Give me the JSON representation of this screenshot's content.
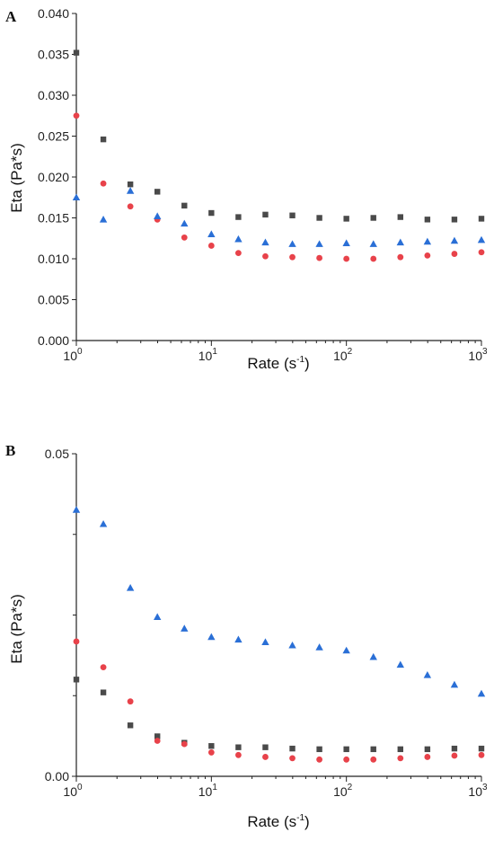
{
  "chart_data": [
    {
      "type": "scatter",
      "panel_label": "A",
      "xlabel": "Rate (s",
      "xlabel_sup": "-1",
      "xlabel_end": ")",
      "ylabel": "Eta (Pa*s)",
      "xscale": "log",
      "xlim": [
        1,
        1000
      ],
      "ylim": [
        0,
        0.04
      ],
      "yticks": [
        "0.000",
        "0.005",
        "0.010",
        "0.015",
        "0.020",
        "0.025",
        "0.030",
        "0.035",
        "0.040"
      ],
      "xticks": [
        {
          "base": "10",
          "exp": "0"
        },
        {
          "base": "10",
          "exp": "1"
        },
        {
          "base": "10",
          "exp": "2"
        },
        {
          "base": "10",
          "exp": "3"
        }
      ],
      "x": [
        1,
        1.585,
        2.512,
        3.981,
        6.31,
        10,
        15.85,
        25.12,
        39.81,
        63.1,
        100,
        158.5,
        251.2,
        398.1,
        631,
        1000
      ],
      "series": [
        {
          "marker": "square",
          "color": "#4a4a4a",
          "values": [
            0.0352,
            0.0246,
            0.0191,
            0.0182,
            0.0165,
            0.0156,
            0.0151,
            0.0154,
            0.0153,
            0.015,
            0.0149,
            0.015,
            0.0151,
            0.0148,
            0.0148,
            0.0149
          ]
        },
        {
          "marker": "circle",
          "color": "#e8424a",
          "values": [
            0.0275,
            0.0192,
            0.0164,
            0.0148,
            0.0126,
            0.0116,
            0.0107,
            0.0103,
            0.0102,
            0.0101,
            0.01,
            0.01,
            0.0102,
            0.0104,
            0.0106,
            0.0108
          ]
        },
        {
          "marker": "triangle",
          "color": "#2a6fd6",
          "values": [
            0.0175,
            0.0148,
            0.0183,
            0.0152,
            0.0143,
            0.013,
            0.0124,
            0.012,
            0.0118,
            0.0118,
            0.0119,
            0.0118,
            0.012,
            0.0121,
            0.0122,
            0.0123
          ]
        }
      ]
    },
    {
      "type": "scatter",
      "panel_label": "B",
      "xlabel": "Rate (s",
      "xlabel_sup": "-1",
      "xlabel_end": ")",
      "ylabel": "Eta (Pa*s)",
      "xscale": "log",
      "xlim": [
        1,
        1000
      ],
      "ylim": [
        0,
        0.05
      ],
      "yticks": [
        "0.00",
        "0.05"
      ],
      "minor_yticks": [
        0.0125,
        0.025,
        0.0375
      ],
      "xticks": [
        {
          "base": "10",
          "exp": "0"
        },
        {
          "base": "10",
          "exp": "1"
        },
        {
          "base": "10",
          "exp": "2"
        },
        {
          "base": "10",
          "exp": "3"
        }
      ],
      "x": [
        1,
        1.585,
        2.512,
        3.981,
        6.31,
        10,
        15.85,
        25.12,
        39.81,
        63.1,
        100,
        158.5,
        251.2,
        398.1,
        631,
        1000
      ],
      "series": [
        {
          "marker": "square",
          "color": "#4a4a4a",
          "values": [
            0.015,
            0.013,
            0.0079,
            0.0062,
            0.0052,
            0.0047,
            0.0045,
            0.0045,
            0.0043,
            0.0042,
            0.0042,
            0.0042,
            0.0042,
            0.0042,
            0.0043,
            0.0043
          ]
        },
        {
          "marker": "circle",
          "color": "#e8424a",
          "values": [
            0.0209,
            0.0169,
            0.0116,
            0.0055,
            0.005,
            0.0037,
            0.0033,
            0.003,
            0.0028,
            0.0026,
            0.0026,
            0.0026,
            0.0028,
            0.003,
            0.0032,
            0.0033
          ]
        },
        {
          "marker": "triangle",
          "color": "#2a6fd6",
          "values": [
            0.0413,
            0.0391,
            0.0292,
            0.0247,
            0.0229,
            0.0216,
            0.0212,
            0.0208,
            0.0203,
            0.02,
            0.0195,
            0.0185,
            0.0173,
            0.0157,
            0.0142,
            0.0128
          ]
        }
      ]
    }
  ]
}
